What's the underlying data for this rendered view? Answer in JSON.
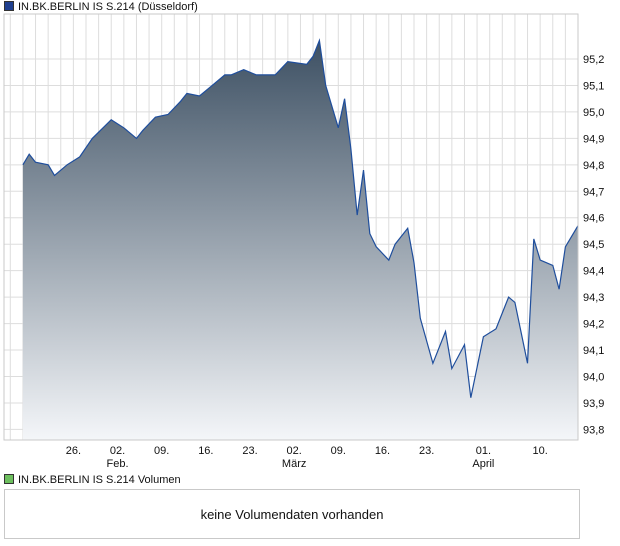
{
  "legend": {
    "price_label": "IN.BK.BERLIN IS S.214 (Düsseldorf)",
    "volume_label": "IN.BK.BERLIN IS S.214 Volumen"
  },
  "volume_panel": {
    "message": "keine Volumendaten vorhanden"
  },
  "colors": {
    "line": "#1f4e9c",
    "fill_top": "#3d5063",
    "fill_bottom": "#f4f6f9",
    "price_swatch": "#1f3f8f",
    "volume_swatch": "#6dbf5e",
    "grid": "#dddddd",
    "border": "#c9c9c9"
  },
  "chart_data": {
    "type": "area",
    "title": "IN.BK.BERLIN IS S.214 (Düsseldorf)",
    "y_axis_position": "right",
    "grid": true,
    "ylim": [
      93.76,
      95.37
    ],
    "yticks": [
      "95,2",
      "95,1",
      "95,0",
      "94,9",
      "94,8",
      "94,7",
      "94,6",
      "94,5",
      "94,4",
      "94,3",
      "94,2",
      "94,1",
      "94,0",
      "93,9",
      "93,8"
    ],
    "ytick_values": [
      95.2,
      95.1,
      95.0,
      94.9,
      94.8,
      94.7,
      94.6,
      94.5,
      94.4,
      94.3,
      94.2,
      94.1,
      94.0,
      93.9,
      93.8
    ],
    "xlim": [
      "2025-01-15",
      "2025-04-16"
    ],
    "xticks": [
      {
        "date": "2025-01-26",
        "day": "26.",
        "month": ""
      },
      {
        "date": "2025-02-02",
        "day": "02.",
        "month": "Feb."
      },
      {
        "date": "2025-02-09",
        "day": "09.",
        "month": ""
      },
      {
        "date": "2025-02-16",
        "day": "16.",
        "month": ""
      },
      {
        "date": "2025-02-23",
        "day": "23.",
        "month": ""
      },
      {
        "date": "2025-03-02",
        "day": "02.",
        "month": "März"
      },
      {
        "date": "2025-03-09",
        "day": "09.",
        "month": ""
      },
      {
        "date": "2025-03-16",
        "day": "16.",
        "month": ""
      },
      {
        "date": "2025-03-23",
        "day": "23.",
        "month": ""
      },
      {
        "date": "2025-04-01",
        "day": "01.",
        "month": "April"
      },
      {
        "date": "2025-04-10",
        "day": "10.",
        "month": ""
      }
    ],
    "series": [
      {
        "name": "IN.BK.BERLIN IS S.214 (Düsseldorf)",
        "x": [
          "2025-01-18",
          "2025-01-19",
          "2025-01-20",
          "2025-01-22",
          "2025-01-23",
          "2025-01-25",
          "2025-01-27",
          "2025-01-29",
          "2025-02-01",
          "2025-02-03",
          "2025-02-05",
          "2025-02-06",
          "2025-02-08",
          "2025-02-10",
          "2025-02-12",
          "2025-02-13",
          "2025-02-15",
          "2025-02-17",
          "2025-02-19",
          "2025-02-20",
          "2025-02-22",
          "2025-02-24",
          "2025-02-25",
          "2025-02-27",
          "2025-03-01",
          "2025-03-04",
          "2025-03-05",
          "2025-03-06",
          "2025-03-07",
          "2025-03-09",
          "2025-03-10",
          "2025-03-11",
          "2025-03-12",
          "2025-03-13",
          "2025-03-14",
          "2025-03-15",
          "2025-03-17",
          "2025-03-18",
          "2025-03-20",
          "2025-03-21",
          "2025-03-22",
          "2025-03-24",
          "2025-03-26",
          "2025-03-27",
          "2025-03-29",
          "2025-03-30",
          "2025-04-01",
          "2025-04-03",
          "2025-04-05",
          "2025-04-06",
          "2025-04-08",
          "2025-04-09",
          "2025-04-10",
          "2025-04-12",
          "2025-04-13",
          "2025-04-14",
          "2025-04-16"
        ],
        "values": [
          94.8,
          94.84,
          94.81,
          94.8,
          94.76,
          94.8,
          94.83,
          94.9,
          94.97,
          94.94,
          94.9,
          94.93,
          94.98,
          94.99,
          95.04,
          95.07,
          95.06,
          95.1,
          95.14,
          95.14,
          95.16,
          95.14,
          95.14,
          95.14,
          95.19,
          95.18,
          95.21,
          95.27,
          95.1,
          94.94,
          95.05,
          94.86,
          94.61,
          94.78,
          94.54,
          94.49,
          94.44,
          94.5,
          94.56,
          94.43,
          94.22,
          94.05,
          94.17,
          94.03,
          94.12,
          93.92,
          94.15,
          94.18,
          94.3,
          94.28,
          94.05,
          94.52,
          94.44,
          94.42,
          94.33,
          94.49,
          94.57
        ]
      }
    ]
  }
}
